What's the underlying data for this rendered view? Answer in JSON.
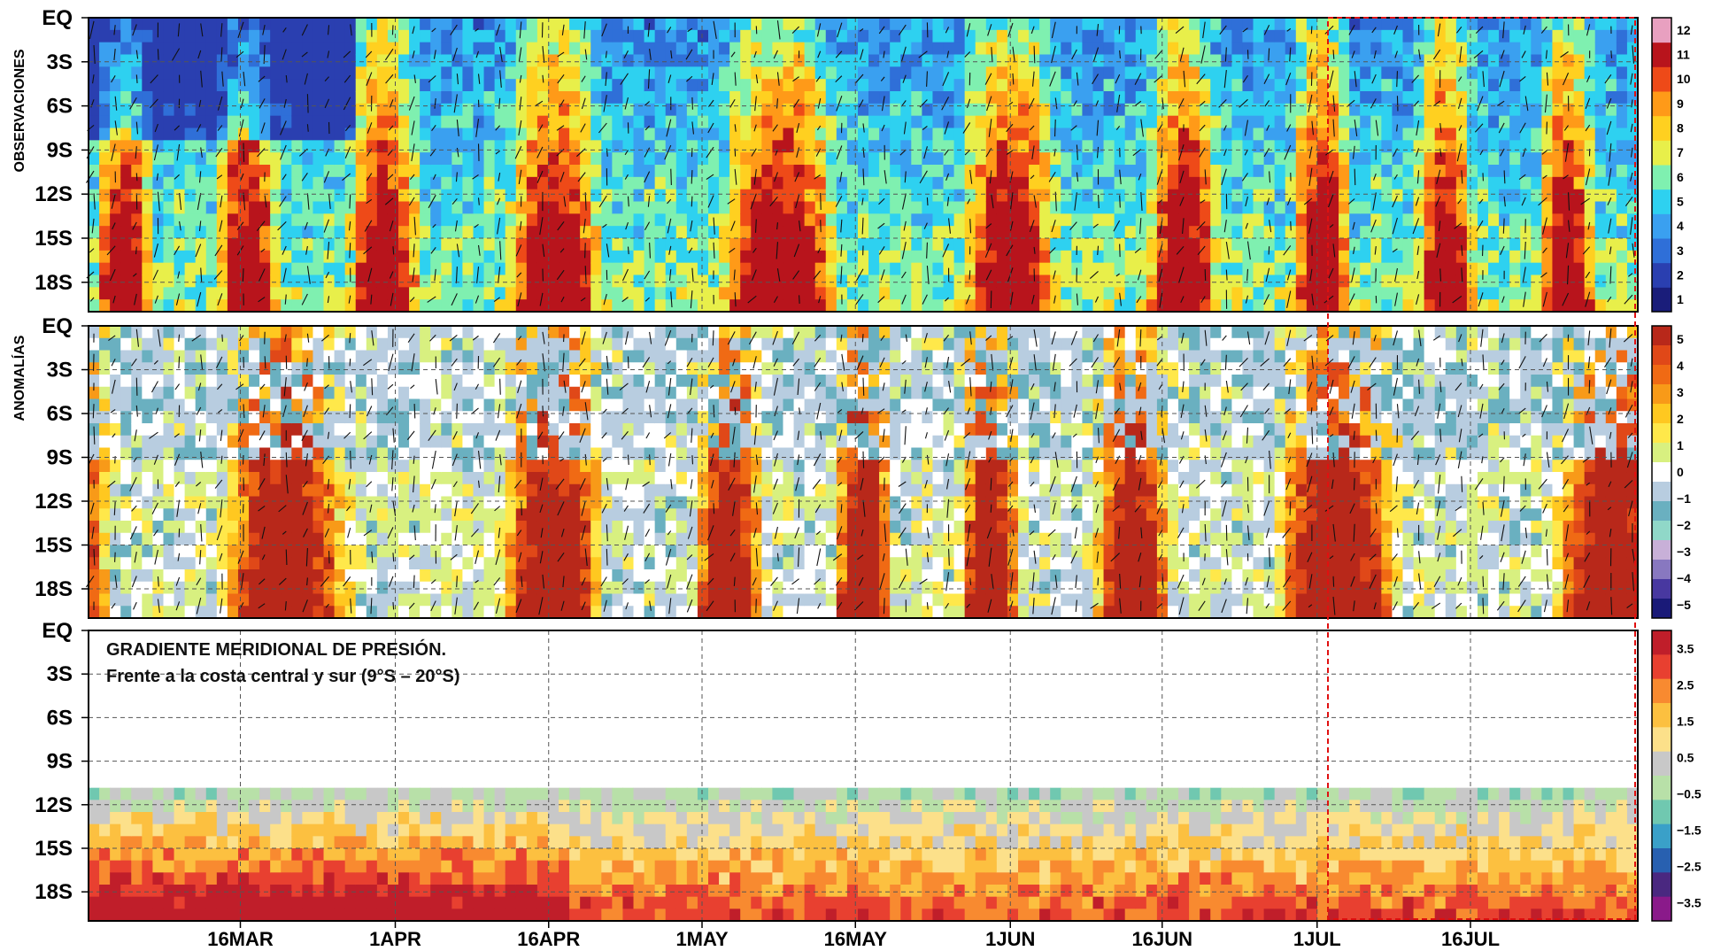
{
  "chart_data": [
    {
      "type": "heatmap",
      "panel_title": "OBSERVACIONES",
      "y_tick_labels": [
        "EQ",
        "3S",
        "6S",
        "9S",
        "12S",
        "15S",
        "18S"
      ],
      "x_tick_labels": [
        "16MAR",
        "1APR",
        "16APR",
        "1MAY",
        "16MAY",
        "1JUN",
        "16JUN",
        "1JUL",
        "16JUL"
      ],
      "colorbar": {
        "ticks": [
          "1",
          "2",
          "3",
          "4",
          "5",
          "6",
          "7",
          "8",
          "9",
          "10",
          "11",
          "12"
        ],
        "colors": [
          "#1a1d7a",
          "#2a3fb0",
          "#2f6fd8",
          "#3aa0f0",
          "#2ed1f0",
          "#7ff0b0",
          "#e8ef4a",
          "#ffd020",
          "#ff9a18",
          "#ee4a18",
          "#b8141c",
          "#e8a0c0"
        ]
      },
      "vectors": true
    },
    {
      "type": "heatmap",
      "panel_title": "ANOMALÍAS",
      "y_tick_labels": [
        "EQ",
        "3S",
        "6S",
        "9S",
        "12S",
        "15S",
        "18S"
      ],
      "x_tick_labels": [
        "16MAR",
        "1APR",
        "16APR",
        "1MAY",
        "16MAY",
        "1JUN",
        "16JUN",
        "1JUL",
        "16JUL"
      ],
      "colorbar": {
        "ticks": [
          "5",
          "4",
          "3",
          "2",
          "1",
          "0",
          "−1",
          "−2",
          "−3",
          "−4",
          "−5"
        ],
        "colors": [
          "#b8281a",
          "#e04818",
          "#f06a14",
          "#f89a18",
          "#ffc820",
          "#ffe84a",
          "#d8f080",
          "#ffffff",
          "#b8cde0",
          "#6ab0c0",
          "#90d8c8",
          "#c8b0d8",
          "#8878c0",
          "#4838a0",
          "#1a1a78"
        ]
      },
      "vectors": true
    },
    {
      "type": "heatmap",
      "annotation": [
        "GRADIENTE MERIDIONAL DE PRESIÓN.",
        "Frente a la costa central y sur (9°S – 20°S)"
      ],
      "y_tick_labels": [
        "EQ",
        "3S",
        "6S",
        "9S",
        "12S",
        "15S",
        "18S"
      ],
      "x_tick_labels": [
        "16MAR",
        "1APR",
        "16APR",
        "1MAY",
        "16MAY",
        "1JUN",
        "16JUN",
        "1JUL",
        "16JUL"
      ],
      "colorbar": {
        "ticks": [
          "3.5",
          "2.5",
          "1.5",
          "0.5",
          "−0.5",
          "−1.5",
          "−2.5",
          "−3.5"
        ],
        "colors": [
          "#c01e2a",
          "#e84030",
          "#f88a30",
          "#fcc040",
          "#fce08a",
          "#c8c8c8",
          "#b8e0a8",
          "#70c8b0",
          "#3aa0c8",
          "#2860b0",
          "#4a2880",
          "#8a1a8a"
        ]
      },
      "vectors": false
    }
  ],
  "colors": {
    "highlight_box": "#e01010",
    "grid": "#555555",
    "vector": "#111111"
  }
}
